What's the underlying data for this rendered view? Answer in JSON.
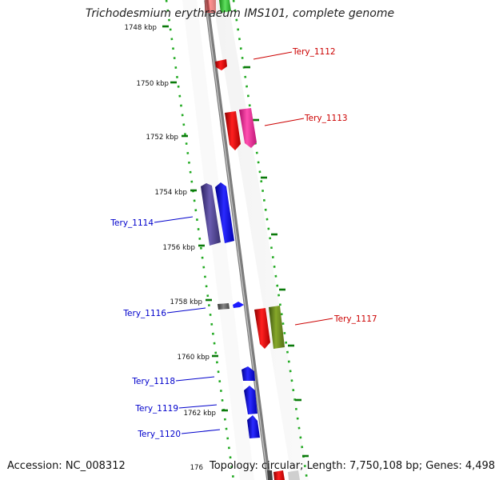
{
  "title": "Trichodesmium erythraeum IMS101, complete genome",
  "footer": {
    "accession": "Accession: NC_008312",
    "summary": "Topology: circular; Length: 7,750,108 bp; Genes: 4,498"
  },
  "ruler_labels": [
    "1748 kbp",
    "1750 kbp",
    "1752 kbp",
    "1754 kbp",
    "1756 kbp",
    "1758 kbp",
    "1760 kbp",
    "1762 kbp",
    "176"
  ],
  "gene_labels": [
    {
      "text": "Tery_1112",
      "color": "#cc0000"
    },
    {
      "text": "Tery_1113",
      "color": "#cc0000"
    },
    {
      "text": "Tery_1114",
      "color": "#0000cc"
    },
    {
      "text": "Tery_1116",
      "color": "#0000cc"
    },
    {
      "text": "Tery_1117",
      "color": "#cc0000"
    },
    {
      "text": "Tery_1118",
      "color": "#0000cc"
    },
    {
      "text": "Tery_1119",
      "color": "#0000cc"
    },
    {
      "text": "Tery_1120",
      "color": "#0000cc"
    }
  ],
  "colors": {
    "backbone": "#888888",
    "ruler_dots": "#22aa22",
    "forward_red": "#e00000",
    "forward_pink": "#ff2f9e",
    "forward_olive": "#6e8a1c",
    "reverse_blue": "#0a0aff",
    "reverse_purple": "#4a3c8c",
    "reverse_grey": "#555555"
  }
}
